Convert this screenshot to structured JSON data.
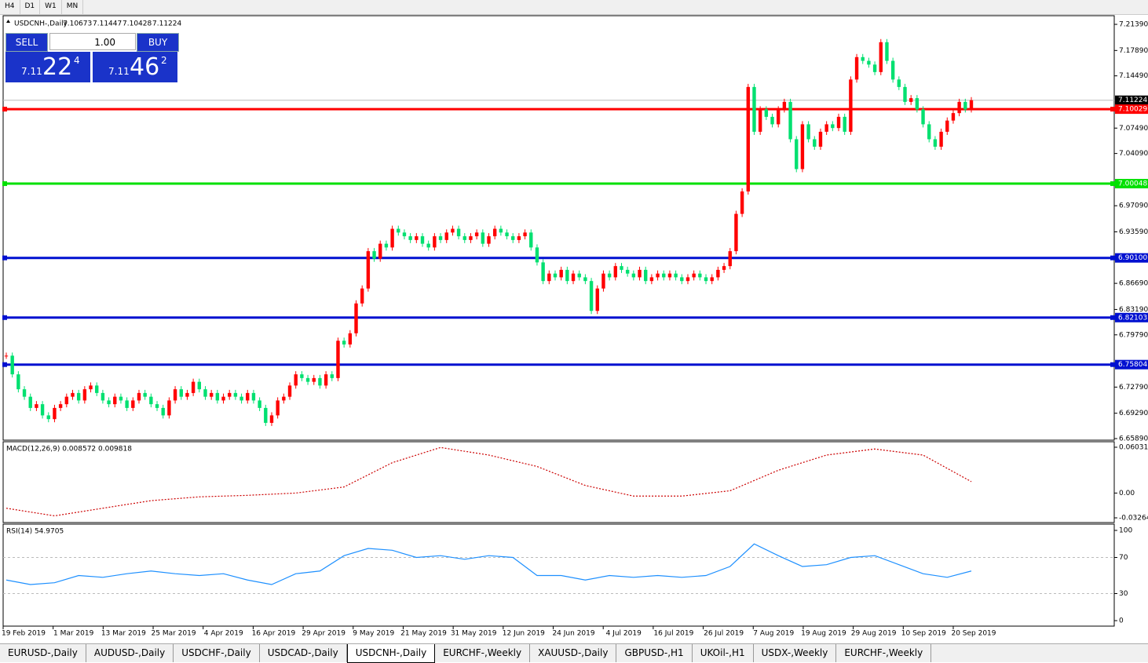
{
  "toolbar": {
    "timeframes": [
      "H4",
      "D1",
      "W1",
      "MN"
    ]
  },
  "header": {
    "symbol": "USDCNH-,Daily",
    "ohlc": [
      "7.10673",
      "7.11447",
      "7.10428",
      "7.11224"
    ]
  },
  "trade_panel": {
    "sell": "SELL",
    "buy": "BUY",
    "lot": "1.00",
    "bid": {
      "base": "7.11",
      "pips": "22",
      "fraction": "4"
    },
    "ask": {
      "base": "7.11",
      "pips": "46",
      "fraction": "2"
    }
  },
  "chart_data": [
    {
      "type": "candlestick",
      "up_color": "#ff0000",
      "down_color": "#00e070",
      "closes": [
        6.77,
        6.745,
        6.725,
        6.715,
        6.7,
        6.705,
        6.69,
        6.685,
        6.7,
        6.705,
        6.715,
        6.72,
        6.71,
        6.725,
        6.73,
        6.72,
        6.71,
        6.705,
        6.715,
        6.71,
        6.7,
        6.71,
        6.72,
        6.715,
        6.705,
        6.7,
        6.69,
        6.71,
        6.725,
        6.715,
        6.72,
        6.735,
        6.725,
        6.715,
        6.72,
        6.71,
        6.715,
        6.72,
        6.715,
        6.71,
        6.72,
        6.71,
        6.7,
        6.68,
        6.69,
        6.71,
        6.715,
        6.73,
        6.745,
        6.74,
        6.735,
        6.74,
        6.73,
        6.745,
        6.74,
        6.79,
        6.785,
        6.8,
        6.84,
        6.86,
        6.91,
        6.9,
        6.92,
        6.915,
        6.94,
        6.935,
        6.93,
        6.925,
        6.93,
        6.92,
        6.915,
        6.93,
        6.925,
        6.935,
        6.94,
        6.93,
        6.925,
        6.93,
        6.935,
        6.92,
        6.93,
        6.94,
        6.935,
        6.93,
        6.925,
        6.93,
        6.935,
        6.915,
        6.895,
        6.87,
        6.88,
        6.875,
        6.885,
        6.87,
        6.88,
        6.875,
        6.87,
        6.83,
        6.86,
        6.88,
        6.875,
        6.89,
        6.885,
        6.88,
        6.875,
        6.885,
        6.87,
        6.875,
        6.88,
        6.875,
        6.88,
        6.875,
        6.87,
        6.875,
        6.88,
        6.875,
        6.87,
        6.875,
        6.885,
        6.89,
        6.91,
        6.96,
        6.99,
        7.13,
        7.07,
        7.1,
        7.09,
        7.08,
        7.1,
        7.11,
        7.06,
        7.02,
        7.08,
        7.06,
        7.05,
        7.07,
        7.08,
        7.075,
        7.09,
        7.07,
        7.14,
        7.17,
        7.165,
        7.16,
        7.15,
        7.19,
        7.165,
        7.14,
        7.13,
        7.11,
        7.115,
        7.1,
        7.08,
        7.06,
        7.05,
        7.07,
        7.085,
        7.095,
        7.11,
        7.1,
        7.11224
      ],
      "ylim": [
        6.6568,
        7.2255
      ],
      "yticks": [
        {
          "value": 7.2139,
          "label": "7.21390"
        },
        {
          "value": 7.1789,
          "label": "7.17890"
        },
        {
          "value": 7.1449,
          "label": "7.14490"
        },
        {
          "value": 7.0749,
          "label": "7.07490"
        },
        {
          "value": 7.0409,
          "label": "7.04090"
        },
        {
          "value": 6.9709,
          "label": "6.97090"
        },
        {
          "value": 6.9359,
          "label": "6.93590"
        },
        {
          "value": 6.8669,
          "label": "6.86690"
        },
        {
          "value": 6.8319,
          "label": "6.83190"
        },
        {
          "value": 6.7979,
          "label": "6.79790"
        },
        {
          "value": 6.7279,
          "label": "6.72790"
        },
        {
          "value": 6.6929,
          "label": "6.69290"
        },
        {
          "value": 6.6589,
          "label": "6.65890"
        }
      ],
      "current": {
        "value": 7.11224,
        "label": "7.11224"
      },
      "levels": [
        {
          "value": 7.10029,
          "label": "7.10029",
          "color": "#ff0000"
        },
        {
          "value": 7.00048,
          "label": "7.00048",
          "color": "#00e000"
        },
        {
          "value": 6.901,
          "label": "6.90100",
          "color": "#0010d0"
        },
        {
          "value": 6.82103,
          "label": "6.82103",
          "color": "#0010d0"
        },
        {
          "value": 6.75804,
          "label": "6.75804",
          "color": "#0010d0"
        }
      ],
      "x_labels": [
        "19 Feb 2019",
        "1 Mar 2019",
        "13 Mar 2019",
        "25 Mar 2019",
        "4 Apr 2019",
        "16 Apr 2019",
        "29 Apr 2019",
        "9 May 2019",
        "21 May 2019",
        "31 May 2019",
        "12 Jun 2019",
        "24 Jun 2019",
        "4 Jul 2019",
        "16 Jul 2019",
        "26 Jul 2019",
        "7 Aug 2019",
        "19 Aug 2019",
        "29 Aug 2019",
        "10 Sep 2019",
        "20 Sep 2019"
      ]
    },
    {
      "type": "line",
      "title": "MACD(12,26,9) 0.008572 0.009818",
      "color": "#cc0000",
      "values": [
        -0.02,
        -0.03,
        -0.02,
        -0.01,
        -0.005,
        -0.003,
        0,
        0.008,
        0.04,
        0.06,
        0.05,
        0.035,
        0.01,
        -0.004,
        -0.004,
        0.003,
        0.03,
        0.05,
        0.058,
        0.05,
        0.015
      ],
      "ylim": [
        -0.032648,
        0.060317
      ],
      "yticks": [
        0.060317,
        {
          "value": 0,
          "label": "0.00"
        },
        -0.032648
      ]
    },
    {
      "type": "line",
      "title": "RSI(14) 54.9705",
      "color": "#1e90ff",
      "values": [
        45,
        40,
        42,
        50,
        48,
        52,
        55,
        52,
        50,
        52,
        45,
        40,
        52,
        55,
        72,
        80,
        78,
        70,
        72,
        68,
        72,
        70,
        50,
        50,
        45,
        50,
        48,
        50,
        48,
        50,
        60,
        85,
        72,
        60,
        62,
        70,
        72,
        62,
        52,
        48,
        55
      ],
      "ylim": [
        0,
        100
      ],
      "yticks": [
        100,
        70,
        30,
        0
      ],
      "levels": [
        70,
        30
      ]
    }
  ],
  "tabs": [
    "EURUSD-,Daily",
    "AUDUSD-,Daily",
    "USDCHF-,Daily",
    "USDCAD-,Daily",
    "USDCNH-,Daily",
    "EURCHF-,Weekly",
    "XAUUSD-,Daily",
    "GBPUSD-,H1",
    "UKOil-,H1",
    "USDX-,Weekly",
    "EURCHF-,Weekly"
  ],
  "active_tab": 4
}
